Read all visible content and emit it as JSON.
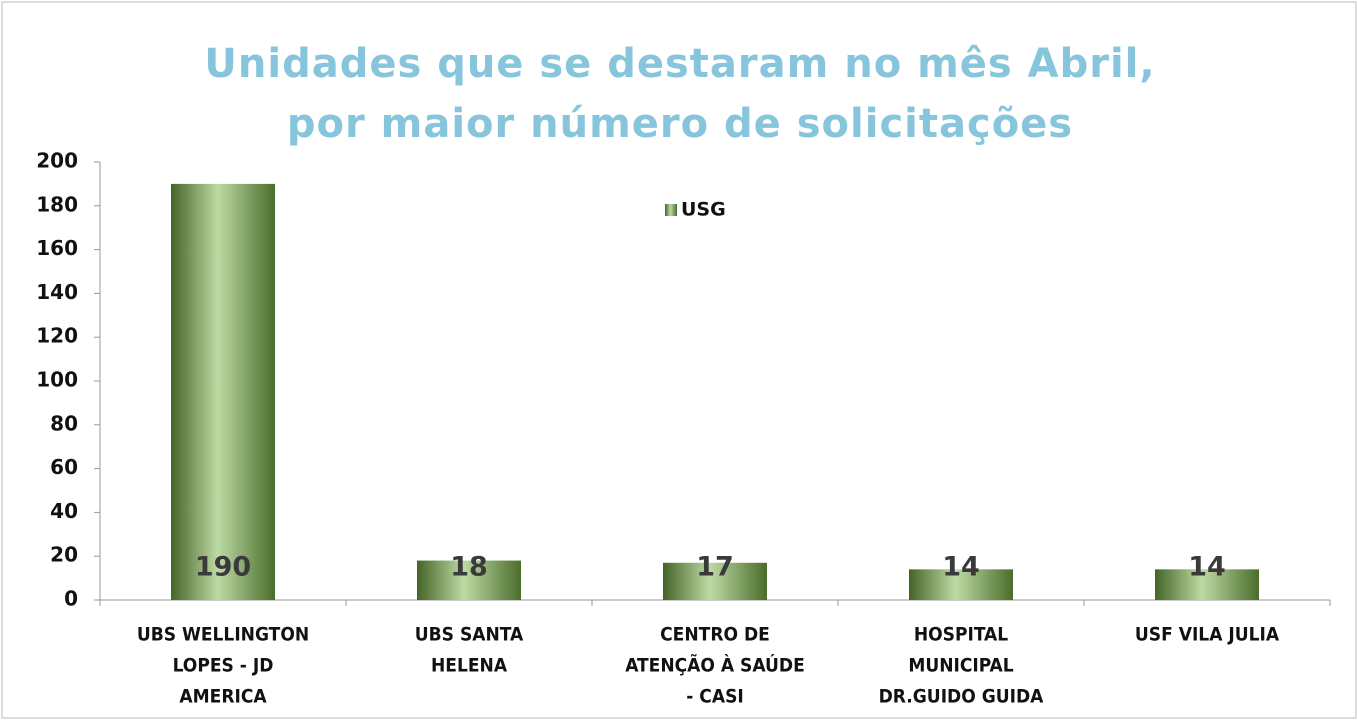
{
  "chart_data": {
    "type": "bar",
    "title": [
      "Unidades  que se destaram no mês Abril,",
      "por  maior número de solicitações"
    ],
    "categories": [
      [
        "UBS WELLINGTON",
        "LOPES - JD",
        "AMERICA"
      ],
      [
        "UBS SANTA",
        "HELENA"
      ],
      [
        "CENTRO DE",
        "ATENÇÃO À SAÚDE",
        "- CASI"
      ],
      [
        "HOSPITAL",
        "MUNICIPAL",
        "DR.GUIDO GUIDA"
      ],
      [
        "USF VILA JULIA"
      ]
    ],
    "series": [
      {
        "name": "USG",
        "color": "#7db548",
        "values": [
          190,
          18,
          17,
          14,
          14
        ]
      }
    ],
    "ylim": [
      0,
      200
    ],
    "yticks": [
      0,
      20,
      40,
      60,
      80,
      100,
      120,
      140,
      160,
      180,
      200
    ],
    "grid": false,
    "legend": "top"
  }
}
